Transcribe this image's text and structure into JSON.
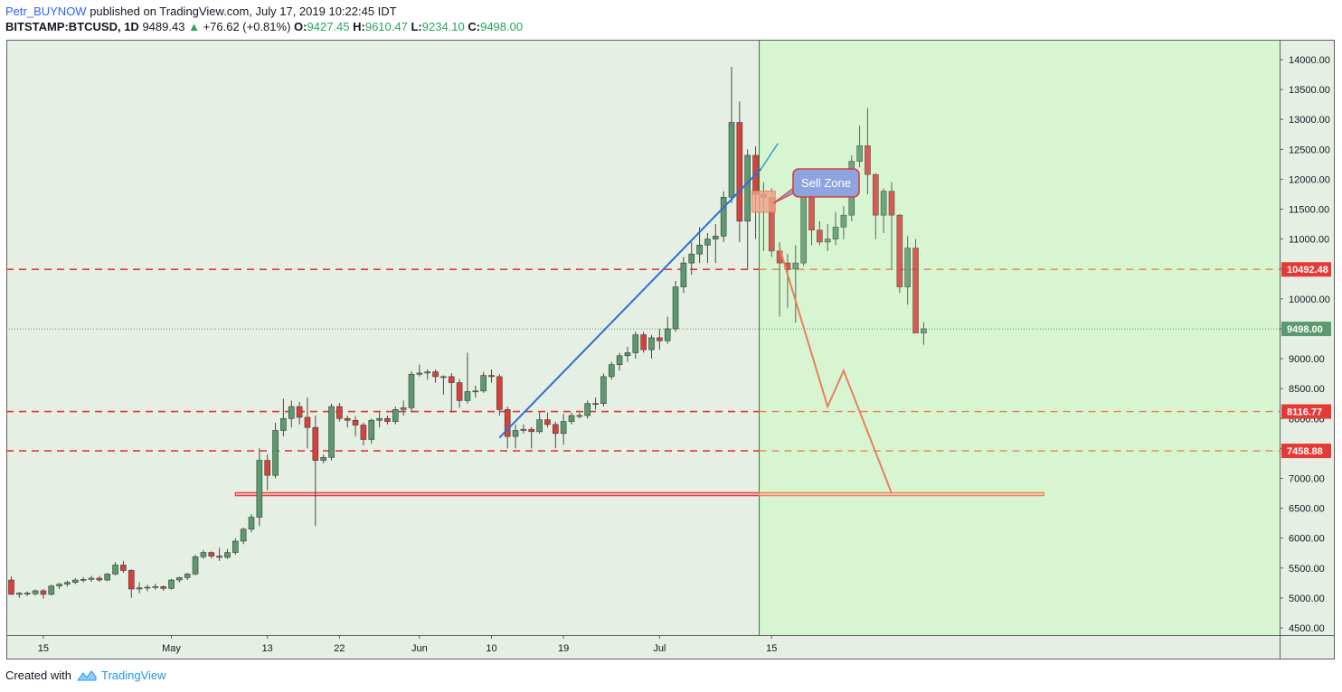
{
  "header": {
    "author": "Petr_BUYNOW",
    "published_text": "published on TradingView.com, July 17, 2019 10:22:45 IDT",
    "symbol": "BITSTAMP:BTCUSD, 1D",
    "last": "9489.43",
    "change": "+76.62 (+0.81%)",
    "o_label": "O:",
    "o_value": "9427.45",
    "h_label": "H:",
    "h_value": "9610.47",
    "l_label": "L:",
    "l_value": "9234.10",
    "c_label": "C:",
    "c_value": "9498.00"
  },
  "footer": {
    "created_with": "Created with",
    "brand": "TradingView"
  },
  "annotations": {
    "sell_zone": "Sell Zone"
  },
  "colors": {
    "up": "#5b9a6e",
    "down": "#d8413a",
    "forecast": "#e8805a",
    "history_bg": "#e6efe3",
    "forecast_bg": "#d7f5d0",
    "trendline": "#2b6fd6",
    "hline": "#e53935",
    "callout": "#8ea4e0"
  },
  "chart_data": {
    "type": "candlestick",
    "symbol": "BITSTAMP:BTCUSD",
    "interval": "1D",
    "ylim": [
      4300,
      14300
    ],
    "y_ticks": [
      4500,
      5000,
      5500,
      6000,
      6500,
      7000,
      7500,
      8000,
      8500,
      9000,
      9500,
      10000,
      10500,
      11000,
      11500,
      12000,
      12500,
      13000,
      13500,
      14000
    ],
    "x_ticks": [
      {
        "label": "15",
        "date": "2019-04-15"
      },
      {
        "label": "May",
        "date": "2019-05-01"
      },
      {
        "label": "13",
        "date": "2019-05-13"
      },
      {
        "label": "22",
        "date": "2019-05-22"
      },
      {
        "label": "Jun",
        "date": "2019-06-01"
      },
      {
        "label": "10",
        "date": "2019-06-10"
      },
      {
        "label": "19",
        "date": "2019-06-19"
      },
      {
        "label": "Jul",
        "date": "2019-07-01"
      },
      {
        "label": "15",
        "date": "2019-07-15"
      }
    ],
    "start_date": "2019-04-11",
    "candles": [
      [
        5300,
        5360,
        5050,
        5060
      ],
      [
        5060,
        5100,
        5000,
        5080
      ],
      [
        5080,
        5110,
        5030,
        5070
      ],
      [
        5070,
        5140,
        5040,
        5120
      ],
      [
        5120,
        5150,
        4990,
        5060
      ],
      [
        5060,
        5220,
        5040,
        5200
      ],
      [
        5200,
        5250,
        5150,
        5230
      ],
      [
        5230,
        5290,
        5190,
        5260
      ],
      [
        5260,
        5330,
        5230,
        5300
      ],
      [
        5300,
        5350,
        5260,
        5310
      ],
      [
        5310,
        5370,
        5270,
        5330
      ],
      [
        5330,
        5370,
        5270,
        5300
      ],
      [
        5300,
        5420,
        5280,
        5400
      ],
      [
        5400,
        5600,
        5380,
        5550
      ],
      [
        5550,
        5620,
        5420,
        5460
      ],
      [
        5460,
        5480,
        5000,
        5150
      ],
      [
        5150,
        5260,
        5080,
        5170
      ],
      [
        5170,
        5220,
        5110,
        5180
      ],
      [
        5180,
        5240,
        5140,
        5190
      ],
      [
        5190,
        5210,
        5120,
        5160
      ],
      [
        5160,
        5320,
        5140,
        5300
      ],
      [
        5300,
        5350,
        5260,
        5340
      ],
      [
        5340,
        5420,
        5300,
        5400
      ],
      [
        5400,
        5720,
        5380,
        5690
      ],
      [
        5690,
        5800,
        5650,
        5760
      ],
      [
        5760,
        5780,
        5660,
        5700
      ],
      [
        5700,
        5840,
        5620,
        5680
      ],
      [
        5680,
        5820,
        5650,
        5760
      ],
      [
        5760,
        6000,
        5720,
        5950
      ],
      [
        5950,
        6180,
        5900,
        6150
      ],
      [
        6150,
        6400,
        6100,
        6350
      ],
      [
        6350,
        7500,
        6200,
        7300
      ],
      [
        7300,
        7400,
        6800,
        7050
      ],
      [
        7050,
        7930,
        7000,
        7800
      ],
      [
        7800,
        8330,
        7700,
        8000
      ],
      [
        8000,
        8300,
        7850,
        8200
      ],
      [
        8200,
        8280,
        7900,
        8020
      ],
      [
        8020,
        8350,
        7500,
        7850
      ],
      [
        7850,
        8050,
        6200,
        7300
      ],
      [
        7300,
        7400,
        7250,
        7350
      ],
      [
        7350,
        8250,
        7300,
        8200
      ],
      [
        8200,
        8260,
        7950,
        8000
      ],
      [
        8000,
        8050,
        7850,
        7970
      ],
      [
        7970,
        8040,
        7700,
        7890
      ],
      [
        7890,
        7930,
        7550,
        7650
      ],
      [
        7650,
        8000,
        7580,
        7970
      ],
      [
        7970,
        8100,
        7850,
        8000
      ],
      [
        8000,
        8050,
        7900,
        7950
      ],
      [
        7950,
        8200,
        7900,
        8150
      ],
      [
        8150,
        8300,
        8050,
        8180
      ],
      [
        8180,
        8790,
        8100,
        8740
      ],
      [
        8740,
        8900,
        8700,
        8760
      ],
      [
        8760,
        8820,
        8650,
        8780
      ],
      [
        8780,
        8820,
        8600,
        8700
      ],
      [
        8700,
        8720,
        8400,
        8700
      ],
      [
        8700,
        8760,
        8100,
        8600
      ],
      [
        8600,
        8660,
        8180,
        8300
      ],
      [
        8300,
        9100,
        8250,
        8450
      ],
      [
        8450,
        8550,
        8350,
        8460
      ],
      [
        8460,
        8780,
        8430,
        8720
      ],
      [
        8720,
        8820,
        8600,
        8700
      ],
      [
        8700,
        8740,
        8050,
        8150
      ],
      [
        8150,
        8200,
        7500,
        7700
      ],
      [
        7700,
        7900,
        7500,
        7800
      ],
      [
        7800,
        7900,
        7750,
        7820
      ],
      [
        7820,
        7860,
        7500,
        7780
      ],
      [
        7780,
        8100,
        7750,
        7980
      ],
      [
        7980,
        8100,
        7850,
        7900
      ],
      [
        7900,
        7950,
        7500,
        7750
      ],
      [
        7750,
        8080,
        7560,
        7950
      ],
      [
        7950,
        8100,
        7900,
        8050
      ],
      [
        8050,
        8100,
        8000,
        8050
      ],
      [
        8050,
        8300,
        8000,
        8250
      ],
      [
        8250,
        8350,
        8150,
        8250
      ],
      [
        8250,
        8750,
        8200,
        8700
      ],
      [
        8700,
        8950,
        8650,
        8900
      ],
      [
        8900,
        9100,
        8800,
        9050
      ],
      [
        9050,
        9200,
        8950,
        9100
      ],
      [
        9100,
        9450,
        9000,
        9400
      ],
      [
        9400,
        9450,
        9100,
        9150
      ],
      [
        9150,
        9400,
        9000,
        9350
      ],
      [
        9350,
        9500,
        9150,
        9300
      ],
      [
        9300,
        9700,
        9250,
        9500
      ],
      [
        9500,
        10300,
        9450,
        10200
      ],
      [
        10200,
        10700,
        10100,
        10600
      ],
      [
        10600,
        10950,
        10400,
        10750
      ],
      [
        10750,
        11200,
        10600,
        10900
      ],
      [
        10900,
        11100,
        10600,
        11000
      ],
      [
        11000,
        11250,
        10600,
        11050
      ],
      [
        11050,
        11800,
        10950,
        11700
      ],
      [
        11700,
        13880,
        11600,
        12950
      ],
      [
        12950,
        13300,
        10950,
        11300
      ],
      [
        11300,
        12500,
        10500,
        12400
      ],
      [
        12400,
        12550,
        11000,
        11750
      ],
      [
        11750,
        11950,
        10800,
        11700
      ],
      [
        11700,
        11850,
        10700,
        10800
      ],
      [
        10800,
        10950,
        9700,
        10600
      ],
      [
        10600,
        10750,
        9850,
        10500
      ],
      [
        10500,
        10900,
        9600,
        10600
      ],
      [
        10600,
        12050,
        10550,
        11950
      ],
      [
        11950,
        12100,
        10900,
        11150
      ],
      [
        11150,
        11300,
        10900,
        10950
      ],
      [
        10950,
        11250,
        10800,
        11000
      ],
      [
        11000,
        11450,
        10900,
        11200
      ],
      [
        11200,
        11550,
        11000,
        11400
      ],
      [
        11400,
        12400,
        11300,
        12300
      ],
      [
        12300,
        12900,
        12200,
        12560
      ],
      [
        12560,
        13190,
        11750,
        12080
      ],
      [
        12080,
        12100,
        11000,
        11400
      ],
      [
        11400,
        11850,
        11100,
        11800
      ],
      [
        11800,
        11950,
        10500,
        11400
      ],
      [
        11400,
        11420,
        10100,
        10200
      ],
      [
        10200,
        11050,
        9900,
        10850
      ],
      [
        10850,
        11000,
        9500,
        9430
      ],
      [
        9430,
        9610,
        9230,
        9500
      ]
    ],
    "forecast_path": [
      {
        "date": "2019-07-16",
        "price": 10850
      },
      {
        "date": "2019-07-22",
        "price": 8200
      },
      {
        "date": "2019-07-24",
        "price": 8800
      },
      {
        "date": "2019-07-30",
        "price": 6750
      }
    ],
    "horizontal_levels": [
      10492.48,
      8116.77,
      7458.88
    ],
    "last_price": 9498.0,
    "trendline": {
      "from": {
        "date": "2019-06-11",
        "price": 7680
      },
      "to": {
        "date": "2019-07-14",
        "price": 12170
      }
    },
    "support_band": {
      "from_date": "2019-05-09",
      "to_date": "2019-08-18",
      "low": 6710,
      "high": 6760
    },
    "sell_zone_box": {
      "from_date": "2019-07-13",
      "to_date": "2019-07-15",
      "low": 11450,
      "high": 11800
    },
    "forecast_area_start": "2019-07-13",
    "price_labels": [
      {
        "text": "10492.48",
        "price": 10492.48,
        "color": "#e53935"
      },
      {
        "text": "9498.00",
        "price": 9498.0,
        "color": "#5b9a6e"
      },
      {
        "text": "8116.77",
        "price": 8116.77,
        "color": "#e53935"
      },
      {
        "text": "7458.88",
        "price": 7458.88,
        "color": "#e53935"
      }
    ]
  }
}
